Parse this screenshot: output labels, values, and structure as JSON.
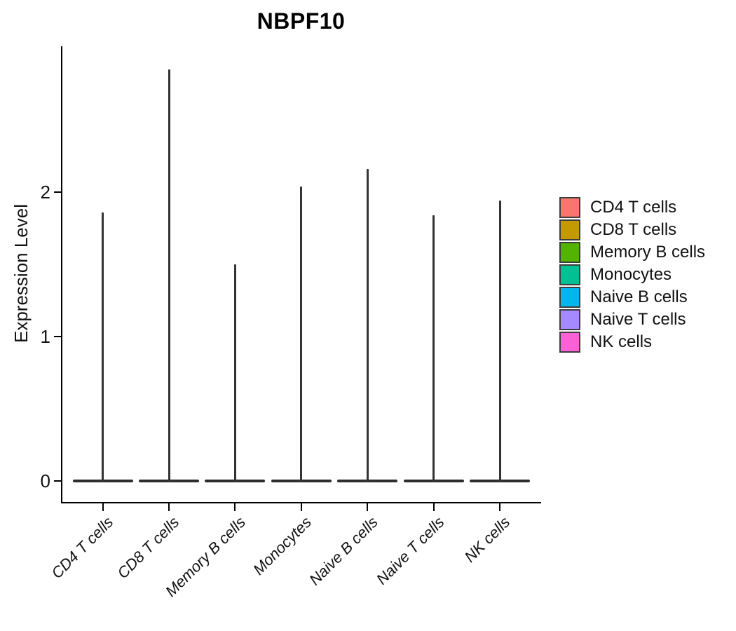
{
  "chart_data": {
    "type": "violin",
    "title": "NBPF10",
    "xlabel": "",
    "ylabel": "Expression Level",
    "yticks": [
      0,
      1,
      2
    ],
    "ylim": [
      -0.15,
      3.0
    ],
    "grid": "off",
    "categories": [
      "CD4 T cells",
      "CD8 T cells",
      "Memory B cells",
      "Monocytes",
      "Naive B cells",
      "Naive T cells",
      "NK cells"
    ],
    "violins": [
      {
        "label": "CD4 T cells",
        "color": "#F8766D",
        "max_expression": 1.86,
        "mass_at": 0
      },
      {
        "label": "CD8 T cells",
        "color": "#C49A00",
        "max_expression": 2.85,
        "mass_at": 0
      },
      {
        "label": "Memory B cells",
        "color": "#53B400",
        "max_expression": 1.5,
        "mass_at": 0
      },
      {
        "label": "Monocytes",
        "color": "#00C094",
        "max_expression": 2.04,
        "mass_at": 0
      },
      {
        "label": "Naive B cells",
        "color": "#00B6EB",
        "max_expression": 2.16,
        "mass_at": 0
      },
      {
        "label": "Naive T cells",
        "color": "#A58AFF",
        "max_expression": 1.84,
        "mass_at": 0
      },
      {
        "label": "NK cells",
        "color": "#FB61D7",
        "max_expression": 1.94,
        "mass_at": 0
      }
    ],
    "legend": {
      "position": "right",
      "entries": [
        {
          "label": "CD4 T cells",
          "color": "#F8766D"
        },
        {
          "label": "CD8 T cells",
          "color": "#C49A00"
        },
        {
          "label": "Memory B cells",
          "color": "#53B400"
        },
        {
          "label": "Monocytes",
          "color": "#00C094"
        },
        {
          "label": "Naive B cells",
          "color": "#00B6EB"
        },
        {
          "label": "Naive T cells",
          "color": "#A58AFF"
        },
        {
          "label": "NK cells",
          "color": "#FB61D7"
        }
      ]
    },
    "style": {
      "violin_line_color": "#333333",
      "axis_color": "#000000",
      "background": "#ffffff"
    }
  }
}
